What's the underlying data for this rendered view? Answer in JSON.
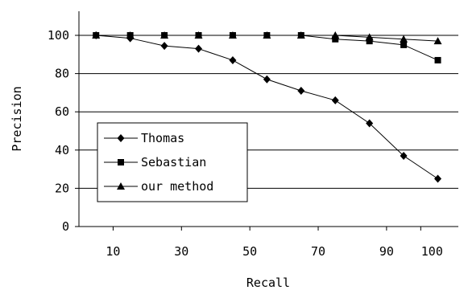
{
  "chart_data": {
    "type": "line",
    "title": "",
    "xlabel": "Recall",
    "ylabel": "Precision",
    "x": [
      5,
      15,
      25,
      35,
      45,
      55,
      65,
      75,
      85,
      95,
      105
    ],
    "x_ticks": [
      10,
      30,
      50,
      70,
      90,
      100
    ],
    "y_ticks": [
      0,
      20,
      40,
      60,
      80,
      100
    ],
    "ylim": [
      0,
      100
    ],
    "grid": "horizontal",
    "legend_position": "bottom-left",
    "series": [
      {
        "name": "Thomas",
        "marker": "diamond",
        "values": [
          100,
          98.5,
          94.5,
          93,
          87,
          77,
          71,
          66,
          54,
          37,
          25
        ]
      },
      {
        "name": "Sebastian",
        "marker": "square",
        "values": [
          100,
          100,
          100,
          100,
          100,
          100,
          100,
          98,
          97,
          95,
          87
        ]
      },
      {
        "name": "our method",
        "marker": "triangle",
        "values": [
          100,
          100,
          100,
          100,
          100,
          100,
          100,
          100,
          99,
          98,
          97
        ]
      }
    ]
  }
}
